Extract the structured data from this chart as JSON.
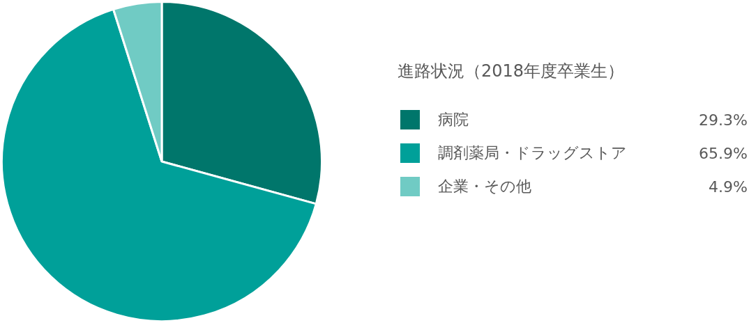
{
  "chart_data": {
    "type": "pie",
    "legend_title": "進路状況（2018年度卒業生）",
    "categories": [
      "病院",
      "調剤薬局・ドラッグストア",
      "企業・その他"
    ],
    "values": [
      29.3,
      65.9,
      4.9
    ],
    "value_labels": [
      "29.3%",
      "65.9%",
      "4.9%"
    ],
    "colors": [
      "#00766b",
      "#00a099",
      "#70cbc4"
    ],
    "legend": "right"
  }
}
